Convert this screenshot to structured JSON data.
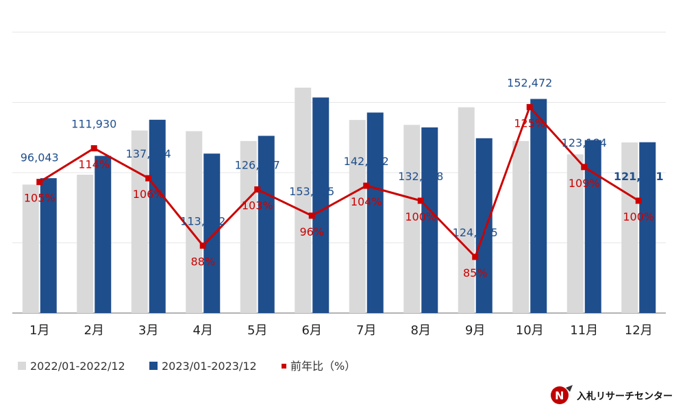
{
  "chart_data": {
    "type": "bar",
    "categories": [
      "1月",
      "2月",
      "3月",
      "4月",
      "5月",
      "6月",
      "7月",
      "8月",
      "9月",
      "10月",
      "11月",
      "12月"
    ],
    "series": [
      {
        "name": "2022/01-2022/12",
        "color": "#d9d9d9",
        "values": [
          91500,
          98500,
          130000,
          129500,
          122500,
          160500,
          137500,
          134000,
          146500,
          122500,
          113000,
          121500
        ]
      },
      {
        "name": "2023/01-2023/12",
        "color": "#1f4e8c",
        "values": [
          96043,
          111930,
          137644,
          113552,
          126187,
          153495,
          142772,
          132188,
          124485,
          152472,
          123184,
          121641
        ],
        "labels": [
          "96,043",
          "111,930",
          "137,644",
          "113,552",
          "126,187",
          "153,495",
          "142,772",
          "132,188",
          "124,485",
          "152,472",
          "123,184",
          "121,641"
        ]
      },
      {
        "name": "前年比（%）",
        "color": "#cc0000",
        "type": "line",
        "values": [
          105,
          114,
          106,
          88,
          103,
          96,
          104,
          100,
          85,
          125,
          109,
          100
        ],
        "labels": [
          "105%",
          "114%",
          "106%",
          "88%",
          "103%",
          "96%",
          "104%",
          "100%",
          "85%",
          "125%",
          "109%",
          "100%"
        ]
      }
    ],
    "title": "",
    "xlabel": "",
    "ylabel": "",
    "ylim": [
      0,
      200000
    ],
    "y2lim": [
      70,
      145
    ],
    "grid": true,
    "legend": "bottom-left"
  },
  "legend": {
    "items": [
      {
        "label": "2022/01-2022/12",
        "color": "#d9d9d9"
      },
      {
        "label": "2023/01-2023/12",
        "color": "#1f4e8c"
      },
      {
        "label": "前年比（%）",
        "color": "#cc0000"
      }
    ]
  },
  "logo": {
    "text": "入札リサーチセンター"
  }
}
